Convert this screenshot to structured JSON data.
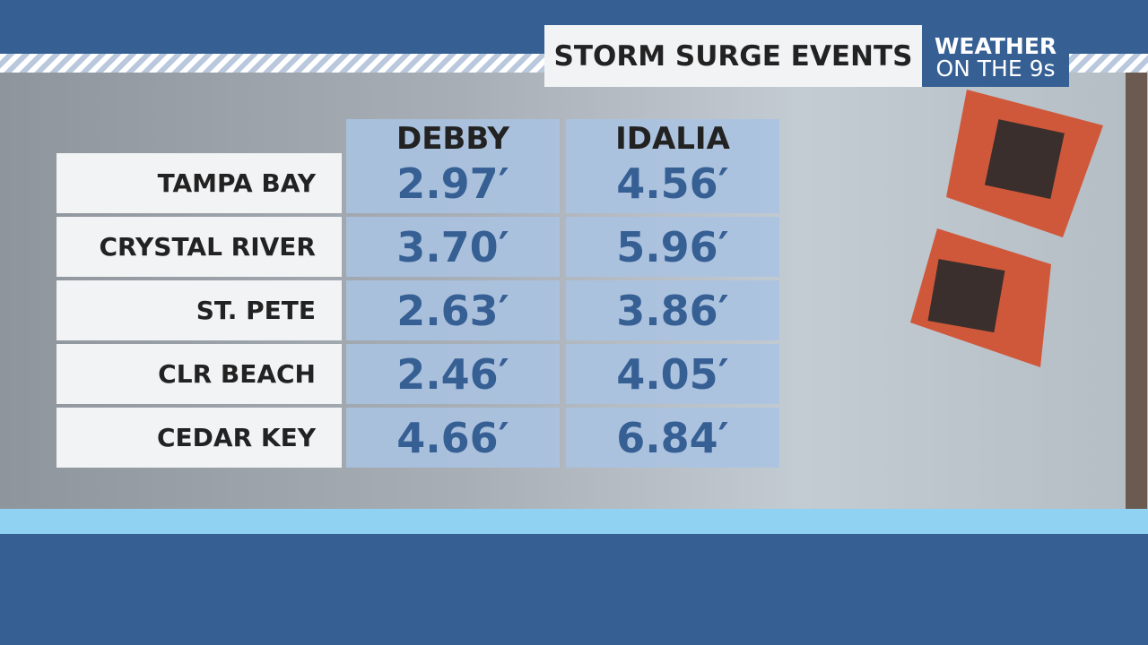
{
  "header": {
    "title": "STORM SURGE EVENTS",
    "brand_top": "WEATHER",
    "brand_bottom": "ON THE 9s"
  },
  "table": {
    "columns": [
      "DEBBY",
      "IDALIA"
    ],
    "rows": [
      {
        "label": "TAMPA BAY",
        "cells": [
          "2.97′",
          "4.56′"
        ]
      },
      {
        "label": "CRYSTAL RIVER",
        "cells": [
          "3.70′",
          "5.96′"
        ]
      },
      {
        "label": "ST. PETE",
        "cells": [
          "2.63′",
          "3.86′"
        ]
      },
      {
        "label": "CLR BEACH",
        "cells": [
          "2.46′",
          "4.05′"
        ]
      },
      {
        "label": "CEDAR KEY",
        "cells": [
          "4.66′",
          "6.84′"
        ]
      }
    ]
  }
}
